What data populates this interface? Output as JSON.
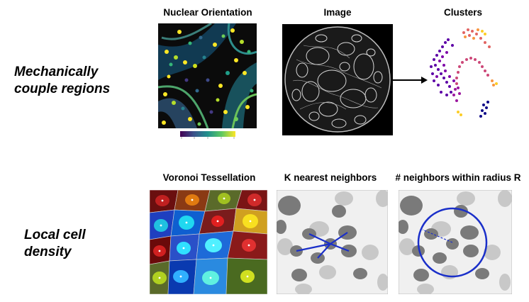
{
  "row_labels": {
    "top_line1": "Mechanically",
    "top_line2": "couple regions",
    "bottom_line1": "Local cell",
    "bottom_line2": "density"
  },
  "panels": {
    "nuclear_orientation": "Nuclear Orientation",
    "image": "Image",
    "clusters": "Clusters",
    "voronoi": "Voronoi Tessellation",
    "knn": "K nearest neighbors",
    "radius": "# neighbors within radius R"
  },
  "colors": {
    "viridis_dark": "#440154",
    "viridis_mid": "#21918c",
    "viridis_light": "#fde725",
    "plasma_dark": "#5c01a6",
    "plasma_mid": "#cc4778",
    "plasma_light": "#f89540",
    "line_blue": "#1a2fc9",
    "cell_dark": "#7a7a7a",
    "cell_light": "#c8c8c8"
  }
}
